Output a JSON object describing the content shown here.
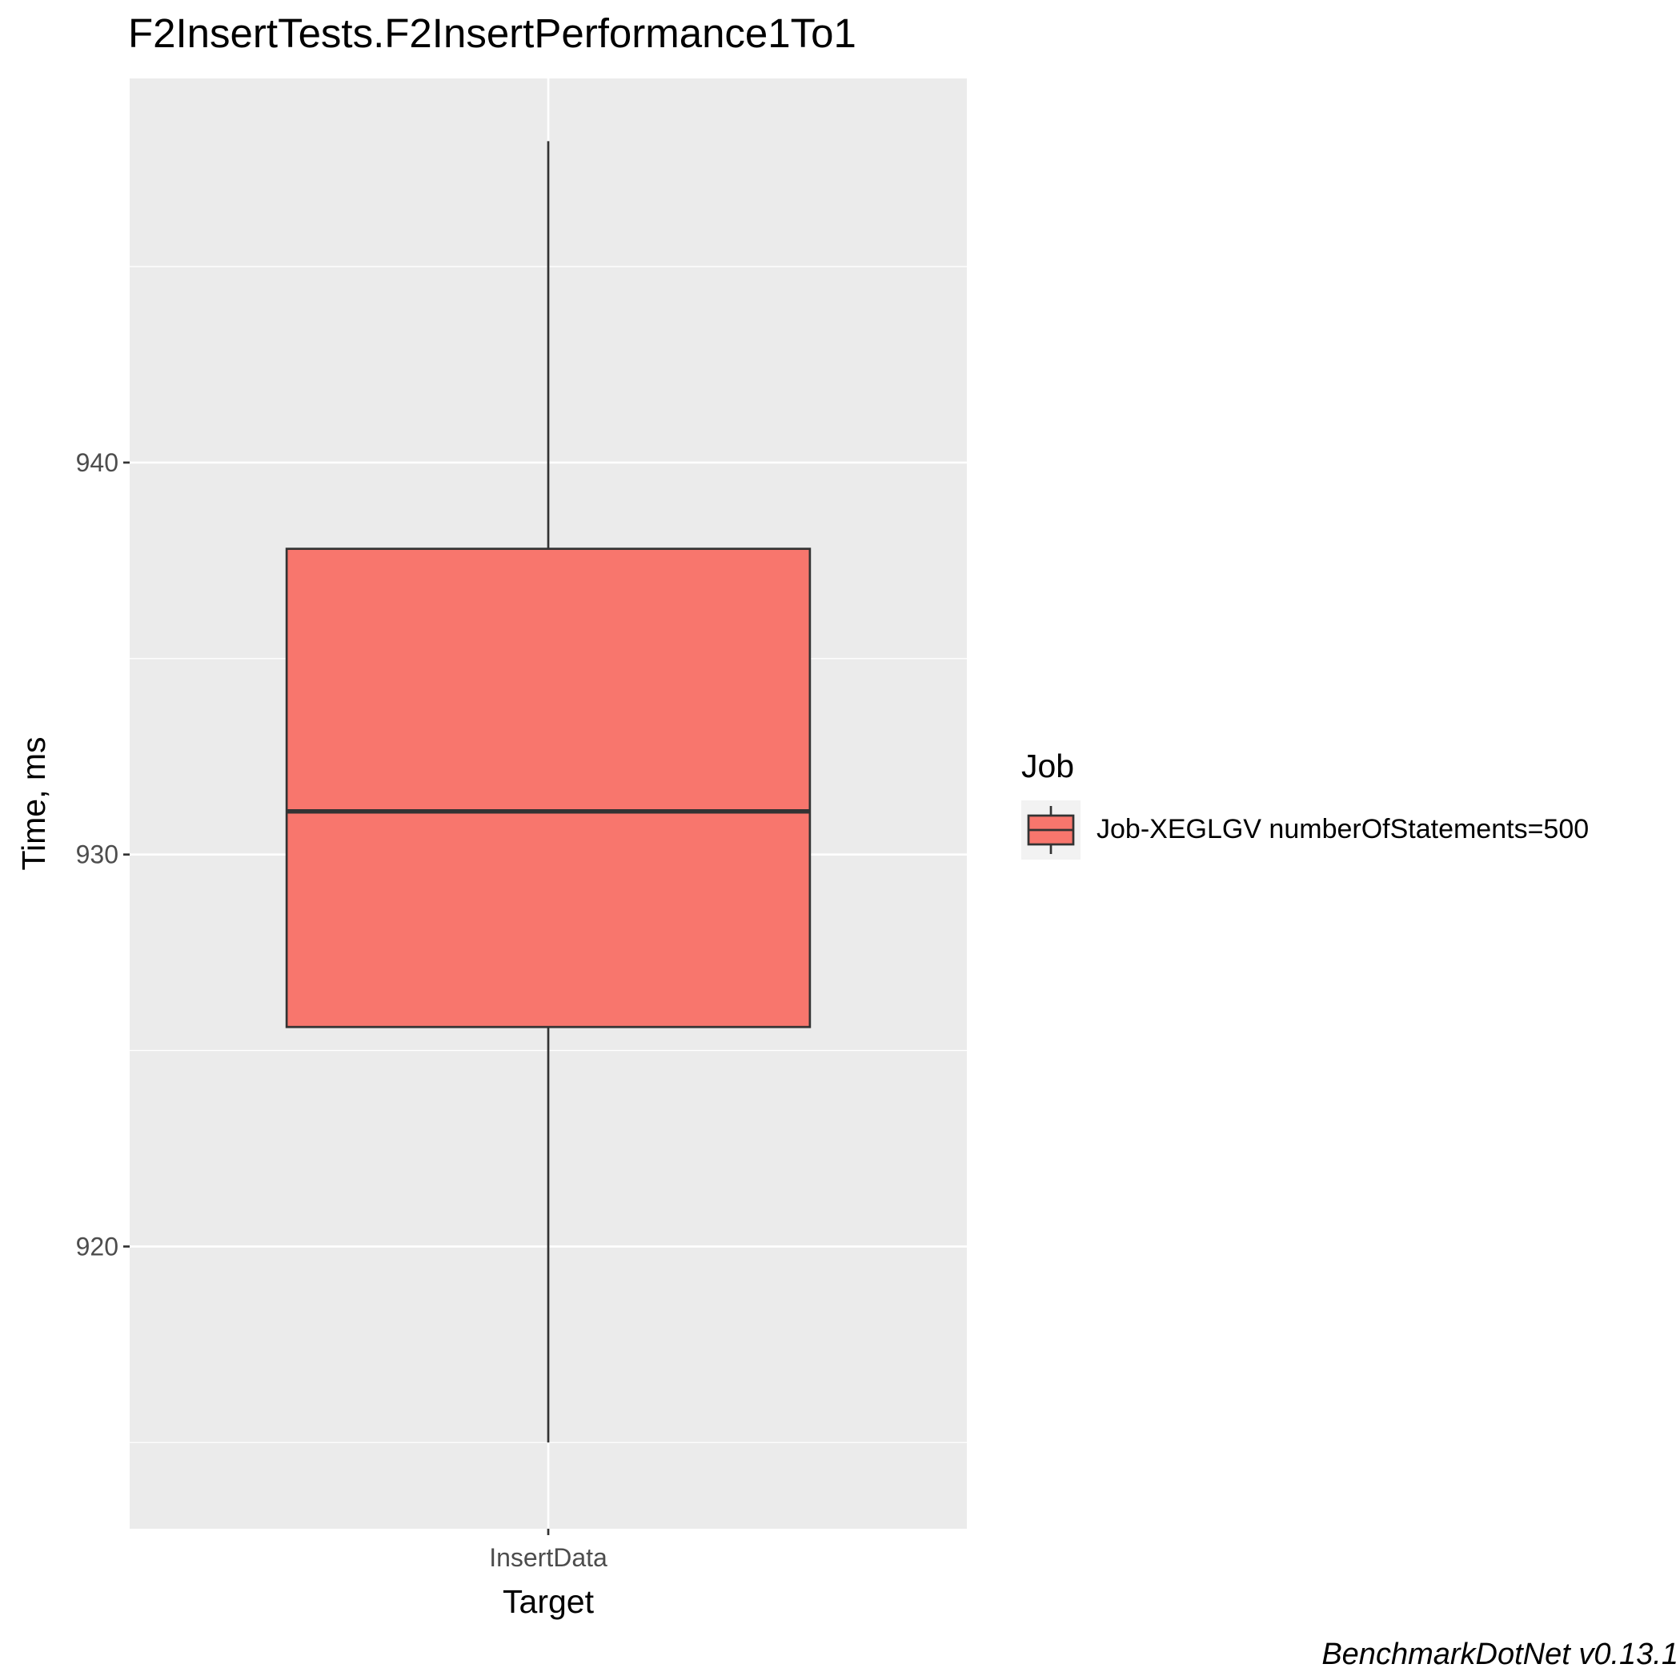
{
  "chart_data": {
    "type": "box",
    "title": "F2InsertTests.F2InsertPerformance1To1",
    "xlabel": "Target",
    "ylabel": "Time, ms",
    "categories": [
      "InsertData"
    ],
    "yticks": [
      920,
      930,
      940
    ],
    "ylim": [
      912.8,
      949.8
    ],
    "grid": true,
    "legend": {
      "title": "Job",
      "position": "right",
      "entries": [
        "Job-XEGLGV numberOfStatements=500"
      ]
    },
    "series": [
      {
        "name": "Job-XEGLGV numberOfStatements=500",
        "color": "#F8766D",
        "boxes": [
          {
            "category": "InsertData",
            "min": 915.0,
            "q1": 925.6,
            "median": 931.1,
            "q3": 937.8,
            "max": 948.2
          }
        ]
      }
    ],
    "panel_background": "#EBEBEB",
    "grid_color": "#FFFFFF",
    "outline_color": "#333333"
  },
  "footer": "BenchmarkDotNet v0.13.1"
}
